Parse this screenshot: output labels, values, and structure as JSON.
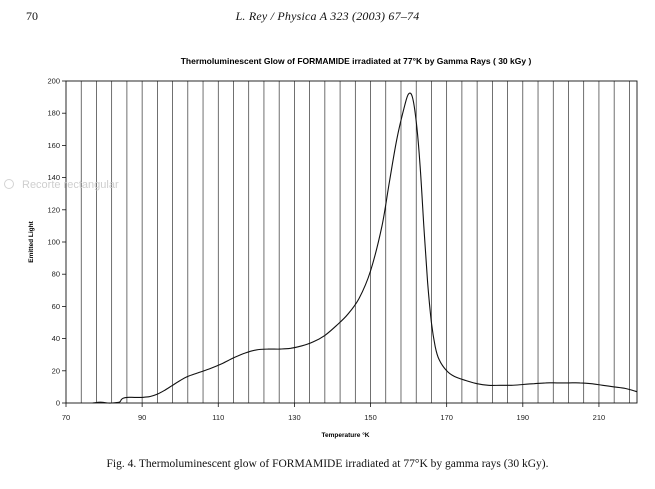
{
  "page": {
    "number": "70",
    "running_head": "L. Rey / Physica A 323 (2003) 67–74",
    "caption": "Fig. 4. Thermoluminescent glow of FORMAMIDE irradiated at 77°K by gamma rays (30 kGy).",
    "overlay_hint": "Recorte rectangular"
  },
  "chart_data": {
    "type": "line",
    "title": "Thermoluminescent Glow of FORMAMIDE irradiated at 77°K by Gamma Rays ( 30 kGy )",
    "xlabel": "Temperature °K",
    "ylabel": "Emitted Light",
    "xlim": [
      70,
      220
    ],
    "ylim": [
      0,
      200
    ],
    "x_ticks": [
      70,
      90,
      110,
      130,
      150,
      170,
      190,
      210
    ],
    "y_ticks": [
      0,
      20,
      40,
      60,
      80,
      100,
      120,
      140,
      160,
      180,
      200
    ],
    "grid": "vertical",
    "series": [
      {
        "x": [
          77,
          79,
          81,
          82,
          84,
          84.5,
          85,
          86,
          88,
          90,
          92,
          94,
          96,
          98,
          100,
          102,
          105,
          108,
          111,
          114,
          117,
          120,
          123,
          126,
          129,
          132,
          135,
          138,
          141,
          144,
          147,
          150,
          153,
          155,
          157,
          159,
          160,
          161,
          162,
          163,
          164,
          165,
          166,
          167,
          168,
          170,
          172,
          175,
          178,
          181,
          184,
          187,
          190,
          193,
          196,
          199,
          202,
          205,
          208,
          211,
          214,
          217,
          220
        ],
        "y": [
          0,
          0.5,
          0,
          0,
          0.5,
          2,
          3,
          3.5,
          3.5,
          3.5,
          4,
          5.5,
          8,
          11,
          14,
          16.5,
          19,
          21.5,
          24.5,
          28,
          31,
          33,
          33.5,
          33.5,
          34,
          35.5,
          38,
          42,
          48,
          55,
          65,
          82,
          110,
          138,
          165,
          185,
          192,
          190,
          175,
          148,
          110,
          75,
          50,
          35,
          27,
          20,
          16.5,
          14,
          12,
          11,
          11,
          11,
          11.5,
          12,
          12.5,
          12.5,
          12.5,
          12.5,
          12,
          11,
          10,
          9,
          7
        ]
      }
    ]
  }
}
